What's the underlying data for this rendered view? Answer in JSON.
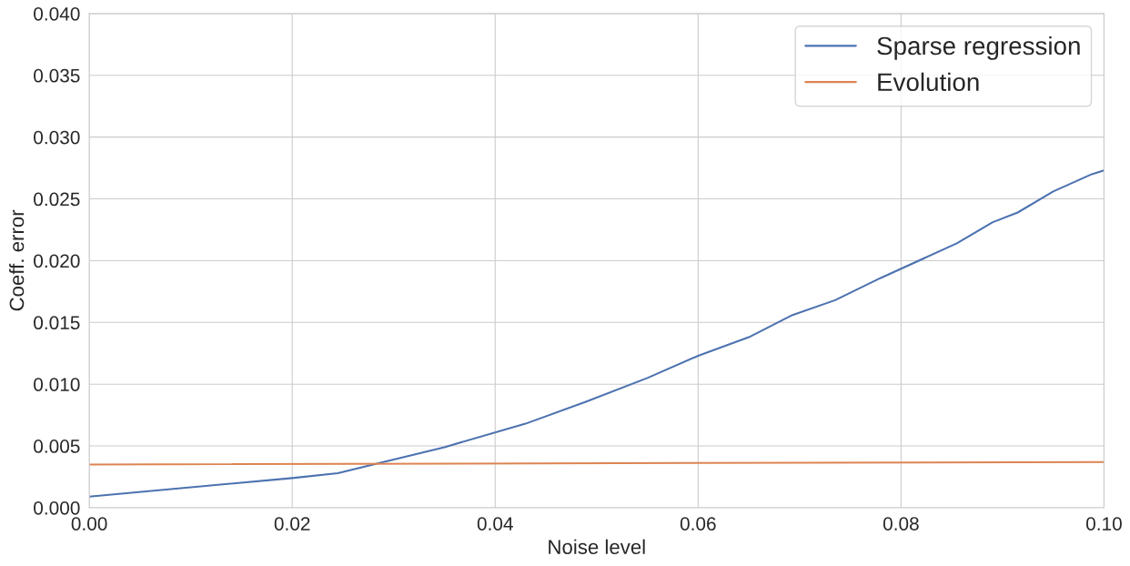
{
  "chart_data": {
    "type": "line",
    "xlabel": "Noise level",
    "ylabel": "Coeff. error",
    "series": [
      {
        "name": "Sparse regression",
        "color": "#4c72b0",
        "x": [
          0,
          0.02,
          0.0245,
          0.035,
          0.043,
          0.049,
          0.055,
          0.06,
          0.065,
          0.0693,
          0.0735,
          0.078,
          0.0855,
          0.089,
          0.0915,
          0.095,
          0.0988,
          0.1
        ],
        "values": [
          0.0009,
          0.0024,
          0.0028,
          0.0049,
          0.0068,
          0.0086,
          0.0105,
          0.0123,
          0.0138,
          0.0156,
          0.0168,
          0.0186,
          0.0214,
          0.0231,
          0.0239,
          0.0256,
          0.027,
          0.0273
        ]
      },
      {
        "name": "Evolution",
        "color": "#dd8452",
        "x": [
          0,
          0.1
        ],
        "values": [
          0.0035,
          0.0037
        ]
      }
    ],
    "xlim": [
      0,
      0.1
    ],
    "ylim": [
      0,
      0.04
    ],
    "xticks": [
      {
        "value": 0,
        "label": "0.00"
      },
      {
        "value": 0.02,
        "label": "0.02"
      },
      {
        "value": 0.04,
        "label": "0.04"
      },
      {
        "value": 0.06,
        "label": "0.06"
      },
      {
        "value": 0.08,
        "label": "0.08"
      },
      {
        "value": 0.1,
        "label": "0.10"
      }
    ],
    "yticks": [
      {
        "value": 0,
        "label": "0.000"
      },
      {
        "value": 0.005,
        "label": "0.005"
      },
      {
        "value": 0.01,
        "label": "0.010"
      },
      {
        "value": 0.015,
        "label": "0.015"
      },
      {
        "value": 0.02,
        "label": "0.020"
      },
      {
        "value": 0.025,
        "label": "0.025"
      },
      {
        "value": 0.03,
        "label": "0.030"
      },
      {
        "value": 0.035,
        "label": "0.035"
      },
      {
        "value": 0.04,
        "label": "0.040"
      }
    ],
    "grid": true,
    "legend": "top right",
    "marker": "none",
    "line_style": "solid"
  }
}
